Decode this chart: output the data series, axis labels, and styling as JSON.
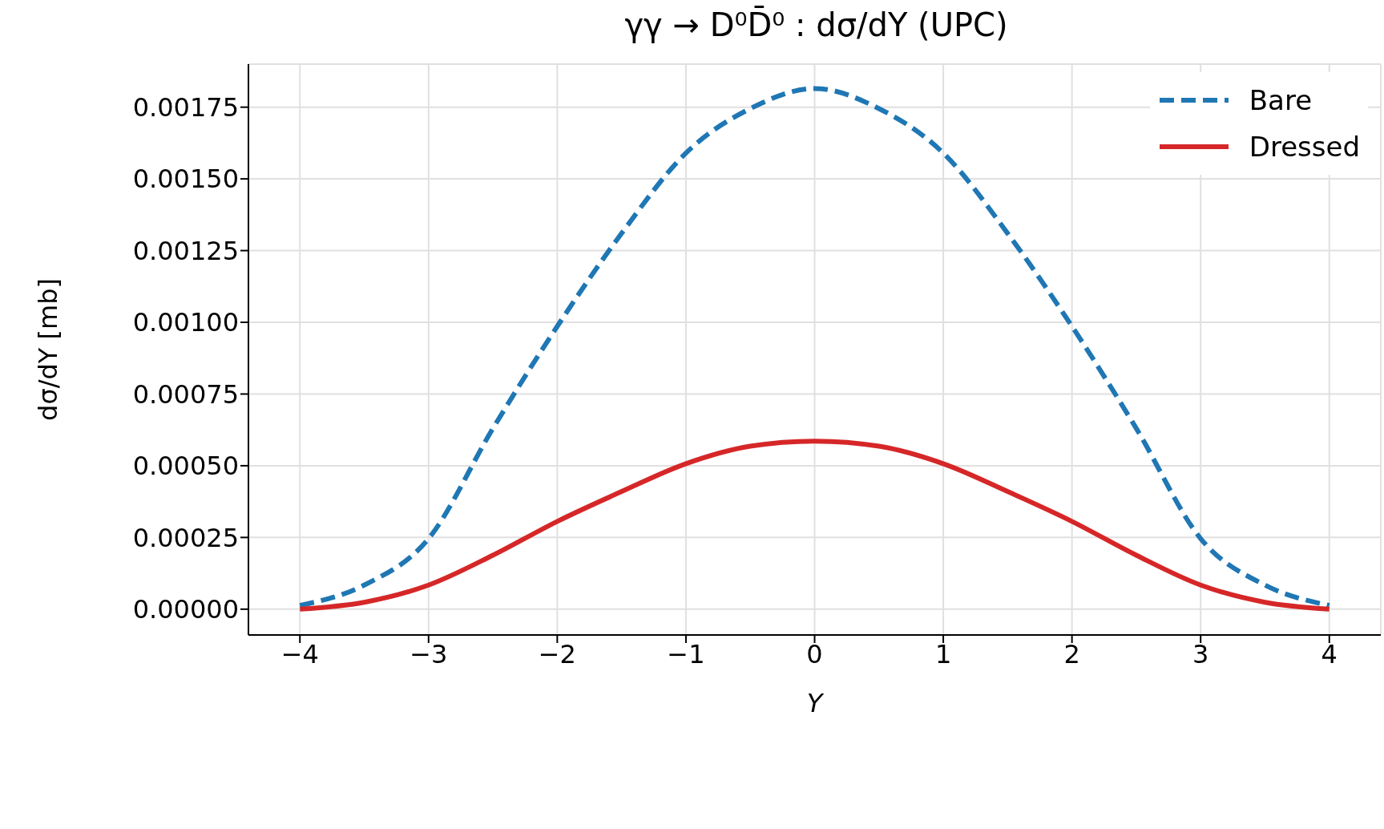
{
  "chart_data": {
    "type": "line",
    "title": "γγ → D⁰D̄⁰ : dσ/dY (UPC)",
    "xlabel": "Y",
    "ylabel": "dσ/dY [mb]",
    "x": [
      -4,
      -3.5,
      -3,
      -2.5,
      -2,
      -1.5,
      -1,
      -0.5,
      0,
      0.5,
      1,
      1.5,
      2,
      2.5,
      3,
      3.5,
      4
    ],
    "series": [
      {
        "name": "Bare",
        "color": "#1f77b4",
        "line_style": "dashed",
        "values": [
          1.3e-05,
          8.4e-05,
          0.000246,
          0.00063,
          0.000986,
          0.00131,
          0.00159,
          0.001745,
          0.001815,
          0.001745,
          0.00159,
          0.00131,
          0.000986,
          0.00063,
          0.000246,
          8.4e-05,
          1.3e-05
        ]
      },
      {
        "name": "Dressed",
        "color": "#d62728",
        "line_style": "solid",
        "values": [
          0,
          2.4e-05,
          8.4e-05,
          0.000188,
          0.000306,
          0.00041,
          0.000507,
          0.000568,
          0.000586,
          0.000568,
          0.000507,
          0.00041,
          0.000306,
          0.000188,
          8.4e-05,
          2.4e-05,
          0
        ]
      }
    ],
    "xlim": [
      -4.4,
      4.4
    ],
    "xticks": [
      {
        "value": -4,
        "label": "−4"
      },
      {
        "value": -3,
        "label": "−3"
      },
      {
        "value": -2,
        "label": "−2"
      },
      {
        "value": -1,
        "label": "−1"
      },
      0,
      1,
      2,
      3,
      4
    ],
    "ylim": [
      -9e-05,
      0.0019
    ],
    "yticks": [
      {
        "value": 0,
        "label": "0.00000"
      },
      {
        "value": 0.00025,
        "label": "0.00025"
      },
      {
        "value": 0.0005,
        "label": "0.00050"
      },
      {
        "value": 0.00075,
        "label": "0.00075"
      },
      {
        "value": 0.001,
        "label": "0.00100"
      },
      {
        "value": 0.00125,
        "label": "0.00125"
      },
      {
        "value": 0.0015,
        "label": "0.00150"
      },
      {
        "value": 0.00175,
        "label": "0.00175"
      }
    ],
    "grid": true,
    "legend": "top right",
    "marker": "none"
  }
}
